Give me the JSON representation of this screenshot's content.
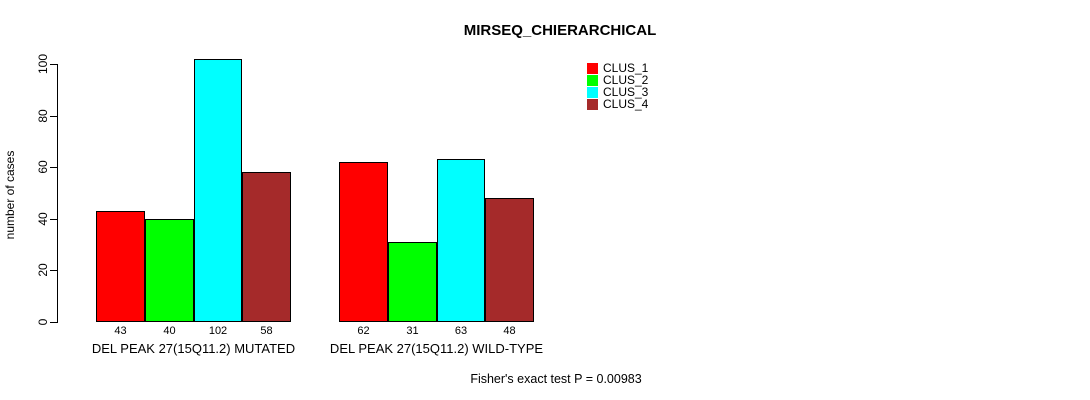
{
  "chart_data": {
    "type": "bar",
    "title": "MIRSEQ_CHIERARCHICAL",
    "ylabel": "number of cases",
    "xlabel": "",
    "categories": [
      "DEL PEAK 27(15Q11.2) MUTATED",
      "DEL PEAK 27(15Q11.2) WILD-TYPE"
    ],
    "series": [
      {
        "name": "CLUS_1",
        "color": "#FF0000",
        "values": [
          43,
          62
        ]
      },
      {
        "name": "CLUS_2",
        "color": "#00FF00",
        "values": [
          40,
          31
        ]
      },
      {
        "name": "CLUS_3",
        "color": "#00FFFF",
        "values": [
          102,
          63
        ]
      },
      {
        "name": "CLUS_4",
        "color": "#A52A2A",
        "values": [
          58,
          48
        ]
      }
    ],
    "bar_value_labels": [
      [
        43,
        40,
        102,
        58
      ],
      [
        62,
        31,
        63,
        48
      ]
    ],
    "yticks": [
      0,
      20,
      40,
      60,
      80,
      100
    ],
    "ylim": [
      0,
      100
    ],
    "grid": false,
    "legend_position": "top-right",
    "legend_entries": [
      "CLUS_1",
      "CLUS_2",
      "CLUS_3",
      "CLUS_4"
    ],
    "annotation": "Fisher's exact test P = 0.00983",
    "text_color": "#000000",
    "background_color": "#FFFFFF"
  }
}
